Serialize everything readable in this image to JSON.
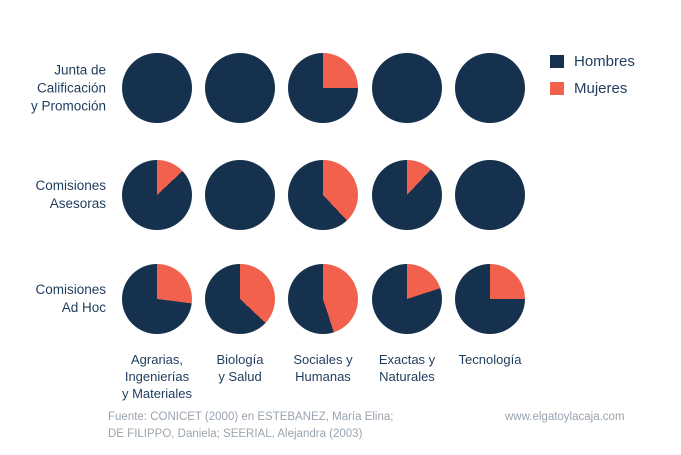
{
  "colors": {
    "hombres_navy": "#15314e",
    "mujeres_coral": "#f2604e",
    "text_navy": "#1f3c5d",
    "footer_gray": "#9aa4ae",
    "background": "#ffffff"
  },
  "legend": {
    "items": [
      {
        "label": "Hombres",
        "color": "#15314e"
      },
      {
        "label": "Mujeres",
        "color": "#f2604e"
      }
    ]
  },
  "labels": {
    "row_display": [
      "Junta de\nCalificación\ny Promoción",
      "Comisiones\nAsesoras",
      "Comisiones\nAd Hoc"
    ],
    "col_display": [
      "Agrarias,\nIngenierías\ny Materiales",
      "Biología\ny Salud",
      "Sociales y\nHumanas",
      "Exactas y\nNaturales",
      "Tecnología"
    ]
  },
  "footer": {
    "source": "Fuente: CONICET (2000) en ESTEBANEZ, María Elina;\nDE FILIPPO, Daniela; SEERIAL, Alejandra (2003)",
    "website": "www.elgatoylacaja.com"
  },
  "chart_data": {
    "type": "pie",
    "layout": "small-multiples grid, 3 rows x 5 columns, legend top-right, no gridlines",
    "unit": "percent share of each pie (estimated from slice angles)",
    "rows": [
      "Junta de Calificación y Promoción",
      "Comisiones Asesoras",
      "Comisiones Ad Hoc"
    ],
    "categories": [
      "Agrarias, Ingenierías y Materiales",
      "Biología y Salud",
      "Sociales y Humanas",
      "Exactas y Naturales",
      "Tecnología"
    ],
    "series": [
      {
        "name": "Mujeres",
        "color": "#f2604e",
        "values_pct_by_row": [
          [
            0,
            0,
            25,
            0,
            0
          ],
          [
            13,
            0,
            38,
            12,
            0
          ],
          [
            27,
            37,
            45,
            20,
            25
          ]
        ]
      },
      {
        "name": "Hombres",
        "color": "#15314e",
        "values_pct_by_row": [
          [
            100,
            100,
            75,
            100,
            100
          ],
          [
            87,
            100,
            62,
            88,
            100
          ],
          [
            73,
            63,
            55,
            80,
            75
          ]
        ]
      }
    ],
    "legend_entries": [
      "Hombres",
      "Mujeres"
    ]
  }
}
